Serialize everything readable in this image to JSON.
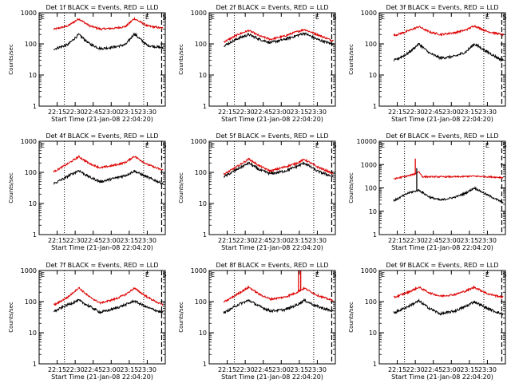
{
  "figure": {
    "background": "#ffffff",
    "ylabel": "Counts/sec",
    "xlabel": "Start Time (21-Jan-08 22:04:20)",
    "corner_mark_left": "E",
    "corner_mark_right": "E",
    "corner_mark_end": "S"
  },
  "chart_data": [
    {
      "type": "line",
      "title": "Det 1f BLACK = Events, RED = LLD",
      "ylog": true,
      "ylim": [
        1,
        1000
      ],
      "yticks": [
        "1",
        "10",
        "100",
        "1000"
      ],
      "xticks": [
        "22:15",
        "22:30",
        "22:45",
        "23:00",
        "23:15",
        "23:30"
      ],
      "events_color": "#000000",
      "lld_color": "#dd0000",
      "lld_keys": [
        [
          22.22,
          300
        ],
        [
          22.4,
          380
        ],
        [
          22.55,
          640
        ],
        [
          22.7,
          380
        ],
        [
          22.85,
          300
        ],
        [
          23.05,
          320
        ],
        [
          23.2,
          360
        ],
        [
          23.32,
          650
        ],
        [
          23.5,
          380
        ],
        [
          23.7,
          320
        ]
      ],
      "events_keys": [
        [
          22.22,
          70
        ],
        [
          22.4,
          95
        ],
        [
          22.55,
          200
        ],
        [
          22.7,
          100
        ],
        [
          22.85,
          70
        ],
        [
          23.05,
          80
        ],
        [
          23.2,
          95
        ],
        [
          23.32,
          210
        ],
        [
          23.5,
          90
        ],
        [
          23.7,
          75
        ]
      ],
      "spikes": []
    },
    {
      "type": "line",
      "title": "Det 2f BLACK = Events, RED = LLD",
      "ylog": true,
      "ylim": [
        1,
        1000
      ],
      "yticks": [
        "1",
        "10",
        "100",
        "1000"
      ],
      "xticks": [
        "22:15",
        "22:30",
        "22:45",
        "23:00",
        "23:15",
        "23:30"
      ],
      "events_color": "#000000",
      "lld_color": "#dd0000",
      "lld_keys": [
        [
          22.22,
          120
        ],
        [
          22.4,
          200
        ],
        [
          22.55,
          270
        ],
        [
          22.7,
          180
        ],
        [
          22.85,
          140
        ],
        [
          23.05,
          180
        ],
        [
          23.2,
          240
        ],
        [
          23.32,
          290
        ],
        [
          23.5,
          200
        ],
        [
          23.7,
          130
        ]
      ],
      "events_keys": [
        [
          22.22,
          90
        ],
        [
          22.4,
          150
        ],
        [
          22.55,
          200
        ],
        [
          22.7,
          140
        ],
        [
          22.85,
          110
        ],
        [
          23.05,
          140
        ],
        [
          23.2,
          180
        ],
        [
          23.32,
          220
        ],
        [
          23.5,
          140
        ],
        [
          23.7,
          100
        ]
      ],
      "spikes": []
    },
    {
      "type": "line",
      "title": "Det 3f BLACK = Events, RED = LLD",
      "ylog": true,
      "ylim": [
        1,
        1000
      ],
      "yticks": [
        "1",
        "10",
        "100",
        "1000"
      ],
      "xticks": [
        "22:15",
        "22:30",
        "22:45",
        "23:00",
        "23:15",
        "23:30"
      ],
      "events_color": "#000000",
      "lld_color": "#dd0000",
      "lld_keys": [
        [
          22.22,
          190
        ],
        [
          22.4,
          260
        ],
        [
          22.55,
          360
        ],
        [
          22.7,
          240
        ],
        [
          22.85,
          200
        ],
        [
          23.05,
          230
        ],
        [
          23.2,
          280
        ],
        [
          23.32,
          380
        ],
        [
          23.5,
          250
        ],
        [
          23.7,
          200
        ]
      ],
      "events_keys": [
        [
          22.22,
          30
        ],
        [
          22.4,
          50
        ],
        [
          22.55,
          100
        ],
        [
          22.7,
          50
        ],
        [
          22.85,
          35
        ],
        [
          23.05,
          40
        ],
        [
          23.2,
          55
        ],
        [
          23.32,
          100
        ],
        [
          23.5,
          55
        ],
        [
          23.7,
          30
        ]
      ],
      "spikes": []
    },
    {
      "type": "line",
      "title": "Det 4f BLACK = Events, RED = LLD",
      "ylog": true,
      "ylim": [
        1,
        1000
      ],
      "yticks": [
        "1",
        "10",
        "100",
        "1000"
      ],
      "xticks": [
        "22:15",
        "22:30",
        "22:45",
        "23:00",
        "23:15",
        "23:30"
      ],
      "events_color": "#000000",
      "lld_color": "#dd0000",
      "lld_keys": [
        [
          22.22,
          110
        ],
        [
          22.4,
          190
        ],
        [
          22.55,
          320
        ],
        [
          22.7,
          190
        ],
        [
          22.85,
          140
        ],
        [
          23.05,
          170
        ],
        [
          23.2,
          210
        ],
        [
          23.32,
          330
        ],
        [
          23.5,
          180
        ],
        [
          23.7,
          120
        ]
      ],
      "events_keys": [
        [
          22.22,
          45
        ],
        [
          22.4,
          75
        ],
        [
          22.55,
          115
        ],
        [
          22.7,
          70
        ],
        [
          22.85,
          50
        ],
        [
          23.05,
          65
        ],
        [
          23.2,
          80
        ],
        [
          23.32,
          110
        ],
        [
          23.5,
          70
        ],
        [
          23.7,
          45
        ]
      ],
      "spikes": []
    },
    {
      "type": "line",
      "title": "Det 5f BLACK = Events, RED = LLD",
      "ylog": true,
      "ylim": [
        1,
        1000
      ],
      "yticks": [
        "1",
        "10",
        "100",
        "1000"
      ],
      "xticks": [
        "22:15",
        "22:30",
        "22:45",
        "23:00",
        "23:15",
        "23:30"
      ],
      "events_color": "#000000",
      "lld_color": "#dd0000",
      "lld_keys": [
        [
          22.22,
          90
        ],
        [
          22.4,
          160
        ],
        [
          22.55,
          270
        ],
        [
          22.7,
          160
        ],
        [
          22.85,
          110
        ],
        [
          23.05,
          150
        ],
        [
          23.2,
          190
        ],
        [
          23.32,
          260
        ],
        [
          23.5,
          150
        ],
        [
          23.7,
          95
        ]
      ],
      "events_keys": [
        [
          22.22,
          75
        ],
        [
          22.4,
          130
        ],
        [
          22.55,
          200
        ],
        [
          22.7,
          120
        ],
        [
          22.85,
          90
        ],
        [
          23.05,
          110
        ],
        [
          23.2,
          150
        ],
        [
          23.32,
          200
        ],
        [
          23.5,
          110
        ],
        [
          23.7,
          75
        ]
      ],
      "spikes": []
    },
    {
      "type": "line",
      "title": "Det 6f BLACK = Events, RED = LLD",
      "ylog": true,
      "ylim": [
        1,
        10000
      ],
      "yticks": [
        "1",
        "10",
        "100",
        "1000",
        "10000"
      ],
      "xticks": [
        "22:15",
        "22:30",
        "22:45",
        "23:00",
        "23:15",
        "23:30"
      ],
      "events_color": "#000000",
      "lld_color": "#dd0000",
      "lld_keys": [
        [
          22.22,
          250
        ],
        [
          22.4,
          330
        ],
        [
          22.5,
          400
        ],
        [
          22.55,
          500
        ],
        [
          22.6,
          300
        ],
        [
          22.8,
          300
        ],
        [
          23.1,
          300
        ],
        [
          23.3,
          320
        ],
        [
          23.5,
          300
        ],
        [
          23.7,
          280
        ]
      ],
      "events_keys": [
        [
          22.22,
          30
        ],
        [
          22.4,
          60
        ],
        [
          22.55,
          80
        ],
        [
          22.7,
          40
        ],
        [
          22.85,
          30
        ],
        [
          23.05,
          40
        ],
        [
          23.2,
          60
        ],
        [
          23.32,
          100
        ],
        [
          23.5,
          50
        ],
        [
          23.7,
          25
        ]
      ],
      "spikes": [
        {
          "series": "lld",
          "x": 22.5,
          "y": 1800
        },
        {
          "series": "events",
          "x": 22.52,
          "y": 700
        }
      ]
    },
    {
      "type": "line",
      "title": "Det 7f BLACK = Events, RED = LLD",
      "ylog": true,
      "ylim": [
        1,
        1000
      ],
      "yticks": [
        "1",
        "10",
        "100",
        "1000"
      ],
      "xticks": [
        "22:15",
        "22:30",
        "22:45",
        "23:00",
        "23:15",
        "23:30"
      ],
      "events_color": "#000000",
      "lld_color": "#dd0000",
      "lld_keys": [
        [
          22.22,
          80
        ],
        [
          22.4,
          140
        ],
        [
          22.55,
          280
        ],
        [
          22.7,
          140
        ],
        [
          22.85,
          90
        ],
        [
          23.05,
          120
        ],
        [
          23.2,
          170
        ],
        [
          23.32,
          270
        ],
        [
          23.5,
          140
        ],
        [
          23.7,
          80
        ]
      ],
      "events_keys": [
        [
          22.22,
          50
        ],
        [
          22.4,
          80
        ],
        [
          22.55,
          110
        ],
        [
          22.7,
          70
        ],
        [
          22.85,
          45
        ],
        [
          23.05,
          60
        ],
        [
          23.2,
          80
        ],
        [
          23.32,
          105
        ],
        [
          23.5,
          65
        ],
        [
          23.7,
          45
        ]
      ],
      "spikes": []
    },
    {
      "type": "line",
      "title": "Det 8f BLACK = Events, RED = LLD",
      "ylog": true,
      "ylim": [
        1,
        1000
      ],
      "yticks": [
        "1",
        "10",
        "100",
        "1000"
      ],
      "xticks": [
        "22:15",
        "22:30",
        "22:45",
        "23:00",
        "23:15",
        "23:30"
      ],
      "events_color": "#000000",
      "lld_color": "#dd0000",
      "lld_keys": [
        [
          22.22,
          100
        ],
        [
          22.4,
          180
        ],
        [
          22.55,
          290
        ],
        [
          22.7,
          170
        ],
        [
          22.85,
          120
        ],
        [
          23.05,
          140
        ],
        [
          23.2,
          190
        ],
        [
          23.32,
          270
        ],
        [
          23.5,
          160
        ],
        [
          23.7,
          110
        ]
      ],
      "events_keys": [
        [
          22.22,
          45
        ],
        [
          22.4,
          80
        ],
        [
          22.55,
          110
        ],
        [
          22.7,
          70
        ],
        [
          22.85,
          50
        ],
        [
          23.05,
          55
        ],
        [
          23.2,
          75
        ],
        [
          23.32,
          110
        ],
        [
          23.5,
          70
        ],
        [
          23.7,
          50
        ]
      ],
      "spikes": [
        {
          "series": "lld",
          "x": 23.24,
          "y": 1000
        },
        {
          "series": "lld",
          "x": 23.27,
          "y": 1000
        }
      ]
    },
    {
      "type": "line",
      "title": "Det 9f BLACK = Events, RED = LLD",
      "ylog": true,
      "ylim": [
        1,
        1000
      ],
      "yticks": [
        "1",
        "10",
        "100",
        "1000"
      ],
      "xticks": [
        "22:15",
        "22:30",
        "22:45",
        "23:00",
        "23:15",
        "23:30"
      ],
      "events_color": "#000000",
      "lld_color": "#dd0000",
      "lld_keys": [
        [
          22.22,
          140
        ],
        [
          22.4,
          200
        ],
        [
          22.55,
          290
        ],
        [
          22.7,
          190
        ],
        [
          22.85,
          150
        ],
        [
          23.05,
          170
        ],
        [
          23.2,
          220
        ],
        [
          23.32,
          290
        ],
        [
          23.5,
          180
        ],
        [
          23.7,
          140
        ]
      ],
      "events_keys": [
        [
          22.22,
          45
        ],
        [
          22.4,
          70
        ],
        [
          22.55,
          105
        ],
        [
          22.7,
          60
        ],
        [
          22.85,
          40
        ],
        [
          23.05,
          50
        ],
        [
          23.2,
          70
        ],
        [
          23.32,
          100
        ],
        [
          23.5,
          60
        ],
        [
          23.7,
          40
        ]
      ],
      "spikes": []
    }
  ]
}
